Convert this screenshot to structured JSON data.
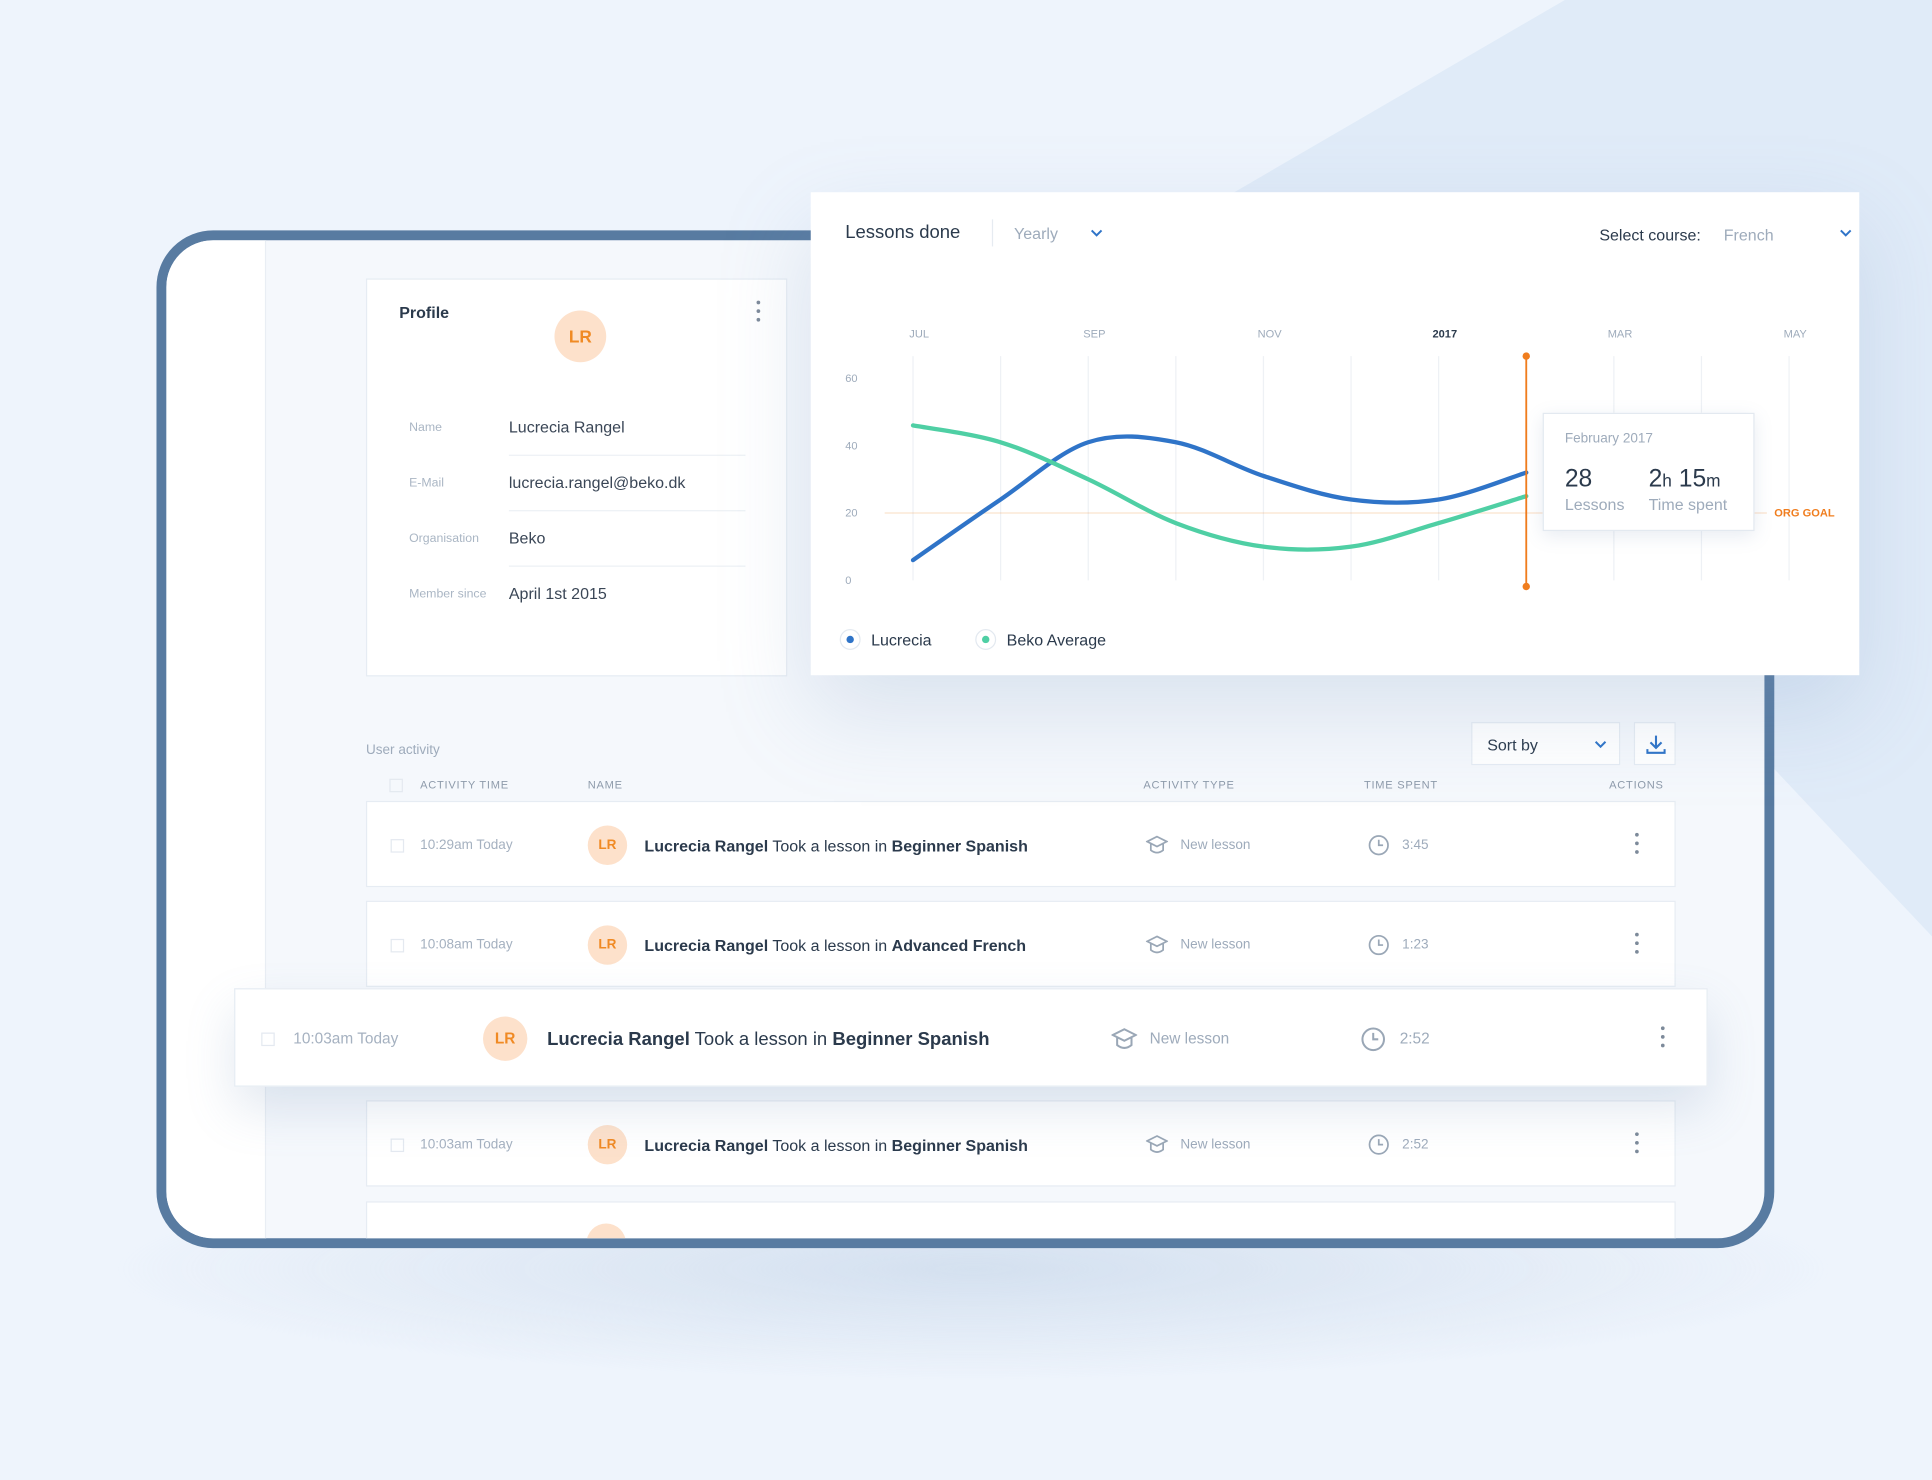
{
  "profile": {
    "title": "Profile",
    "avatar": "LR",
    "fields": [
      {
        "label": "Name",
        "value": "Lucrecia Rangel"
      },
      {
        "label": "E-Mail",
        "value": "lucrecia.rangel@beko.dk"
      },
      {
        "label": "Organisation",
        "value": "Beko"
      },
      {
        "label": "Member since",
        "value": "April 1st 2015"
      }
    ]
  },
  "chart_panel": {
    "title": "Lessons done",
    "period": "Yearly",
    "course_label": "Select course:",
    "course": "French"
  },
  "chart_data": {
    "type": "line",
    "categories": [
      "JUL",
      null,
      "SEP",
      null,
      "NOV",
      null,
      "2017",
      null,
      "MAR",
      null,
      "MAY"
    ],
    "series": [
      {
        "name": "Lucrecia",
        "color": "#2f74c8",
        "values": [
          6,
          24,
          41,
          41,
          31,
          24,
          24,
          32,
          null,
          null,
          null
        ]
      },
      {
        "name": "Beko Average",
        "color": "#4fcfa4",
        "values": [
          46,
          41,
          30,
          17,
          10,
          10,
          17,
          25,
          null,
          null,
          null
        ]
      }
    ],
    "ylim": [
      0,
      60
    ],
    "yticks": [
      0,
      20,
      40,
      60
    ],
    "grid": true,
    "goal": {
      "value": 20,
      "label": "ORG GOAL",
      "color": "#f07d1e"
    },
    "tooltip": {
      "title": "February 2017",
      "lessons": 28,
      "lessons_label": "Lessons",
      "hours": 2,
      "hours_unit": "h",
      "minutes": 15,
      "minutes_unit": "m",
      "time_label": "Time spent"
    }
  },
  "activity": {
    "title": "User activity",
    "sort": "Sort by",
    "columns": [
      "ACTIVITY TIME",
      "NAME",
      "ACTIVITY TYPE",
      "TIME SPENT",
      "ACTIONS"
    ],
    "rows": [
      {
        "time": "10:29am Today",
        "avatar": "LR",
        "name": "Lucrecia Rangel",
        "action": "Took a lesson in",
        "course": "Beginner Spanish",
        "type": "New lesson",
        "duration": "3:45"
      },
      {
        "time": "10:08am Today",
        "avatar": "LR",
        "name": "Lucrecia Rangel",
        "action": "Took a lesson in",
        "course": "Advanced French",
        "type": "New lesson",
        "duration": "1:23"
      },
      {
        "time": "10:03am Today",
        "avatar": "LR",
        "name": "Lucrecia Rangel",
        "action": "Took a lesson in",
        "course": "Beginner Spanish",
        "type": "New lesson",
        "duration": "2:52"
      },
      {
        "time": "10:03am Today",
        "avatar": "LR",
        "name": "Lucrecia Rangel",
        "action": "Took a lesson in",
        "course": "Beginner Spanish",
        "type": "New lesson",
        "duration": "2:52"
      }
    ]
  }
}
